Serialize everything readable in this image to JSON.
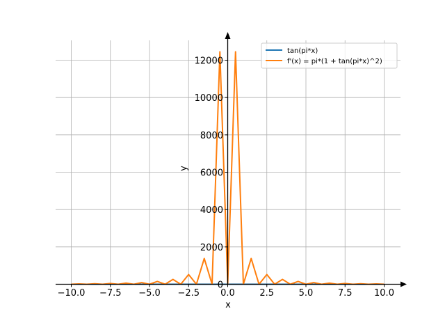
{
  "chart_data": {
    "type": "line",
    "title": "",
    "xlabel": "x",
    "ylabel": "y",
    "xlim": [
      -11.0,
      11.0
    ],
    "ylim": [
      -300,
      13500
    ],
    "grid": true,
    "legend_placement": "top-right",
    "x_ticks": [
      -10,
      -7.5,
      -5,
      -2.5,
      0,
      2.5,
      5,
      7.5,
      10
    ],
    "x_tick_labels": [
      "−10.0",
      "−7.5",
      "−5.0",
      "−2.5",
      "0.0",
      "2.5",
      "5.0",
      "7.5",
      "10.0"
    ],
    "y_ticks": [
      0,
      2000,
      4000,
      6000,
      8000,
      10000,
      12000
    ],
    "y_tick_labels": [
      "0",
      "2000",
      "4000",
      "6000",
      "8000",
      "10000",
      "12000"
    ],
    "series": [
      {
        "name": "tan(pi*x)",
        "color": "#1f77b4",
        "x": [
          -10.0,
          -9.0,
          -8.0,
          -7.0,
          -6.0,
          -5.0,
          -4.0,
          -3.0,
          -2.0,
          -1.0,
          0.0,
          1.0,
          2.0,
          3.0,
          4.0,
          5.0,
          6.0,
          7.0,
          8.0,
          9.0,
          10.0
        ],
        "y": [
          0,
          0,
          0,
          0,
          0,
          0,
          0,
          0,
          0,
          0,
          0,
          0,
          0,
          0,
          0,
          0,
          0,
          0,
          0,
          0,
          0
        ]
      },
      {
        "name": "f'(x) = pi*(1 + tan(pi*x)^2)",
        "color": "#ff7f0e",
        "x": [
          -10.0,
          -9.5,
          -9.0,
          -8.5,
          -8.0,
          -7.5,
          -7.0,
          -6.5,
          -6.0,
          -5.5,
          -5.0,
          -4.5,
          -4.0,
          -3.5,
          -3.0,
          -2.5,
          -2.0,
          -1.5,
          -1.0,
          -0.5,
          0.0,
          0.5,
          1.0,
          1.5,
          2.0,
          2.5,
          3.0,
          3.5,
          4.0,
          4.5,
          5.0,
          5.5,
          6.0,
          6.5,
          7.0,
          7.5,
          8.0,
          8.5,
          9.0,
          9.5,
          10.0
        ],
        "y": [
          0,
          20,
          0,
          30,
          0,
          40,
          0,
          60,
          0,
          90,
          0,
          150,
          0,
          260,
          0,
          520,
          0,
          1380,
          0,
          12450,
          0,
          12450,
          0,
          1380,
          0,
          520,
          0,
          260,
          0,
          150,
          0,
          90,
          0,
          60,
          0,
          40,
          0,
          30,
          0,
          20,
          0
        ]
      }
    ]
  }
}
